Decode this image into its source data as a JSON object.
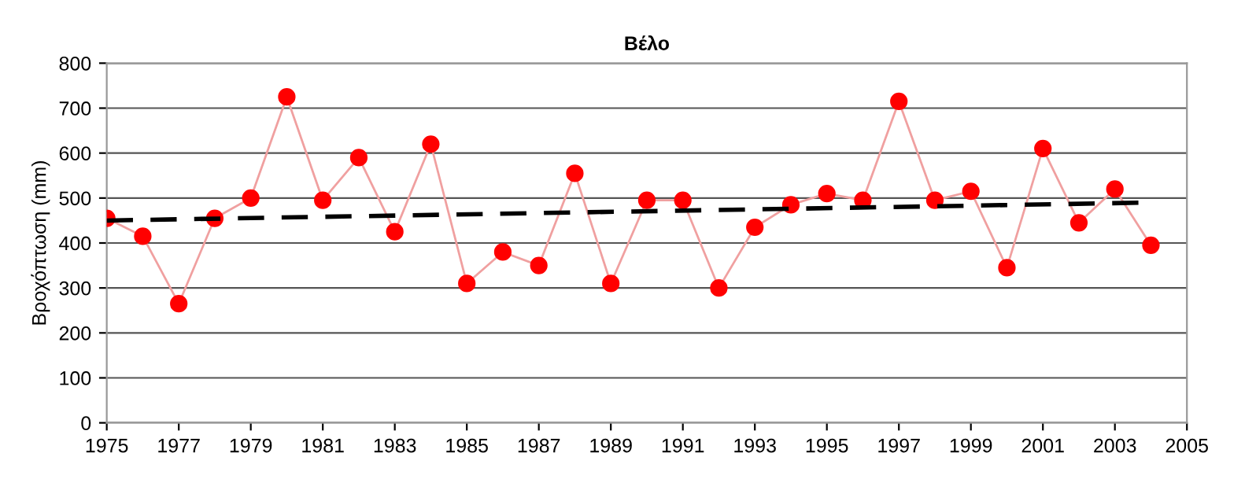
{
  "chart_data": {
    "type": "line",
    "title": "Βέλο",
    "ylabel": "Βροχόπτωση (mm)",
    "x": [
      1975,
      1976,
      1977,
      1978,
      1979,
      1980,
      1981,
      1982,
      1983,
      1984,
      1985,
      1986,
      1987,
      1988,
      1989,
      1990,
      1991,
      1992,
      1993,
      1994,
      1995,
      1996,
      1997,
      1998,
      1999,
      2000,
      2001,
      2002,
      2003,
      2004
    ],
    "series": [
      {
        "color": "#ff0000",
        "marker": "circle",
        "line_style": "solid",
        "values": [
          455,
          415,
          265,
          455,
          500,
          725,
          495,
          590,
          425,
          620,
          310,
          380,
          350,
          555,
          310,
          495,
          495,
          300,
          435,
          485,
          510,
          495,
          715,
          495,
          515,
          345,
          610,
          445,
          520,
          395
        ]
      },
      {
        "color": "#000000",
        "marker": "none",
        "line_style": "dashed",
        "x": [
          1975,
          2004
        ],
        "values": [
          450,
          490
        ]
      }
    ],
    "xlim": [
      1975,
      2005
    ],
    "xticks": [
      1975,
      1977,
      1979,
      1981,
      1983,
      1985,
      1987,
      1989,
      1991,
      1993,
      1995,
      1997,
      1999,
      2001,
      2003,
      2005
    ],
    "ylim": [
      0,
      800
    ],
    "yticks": [
      0,
      100,
      200,
      300,
      400,
      500,
      600,
      700,
      800
    ],
    "grid": "y",
    "legend": false
  }
}
